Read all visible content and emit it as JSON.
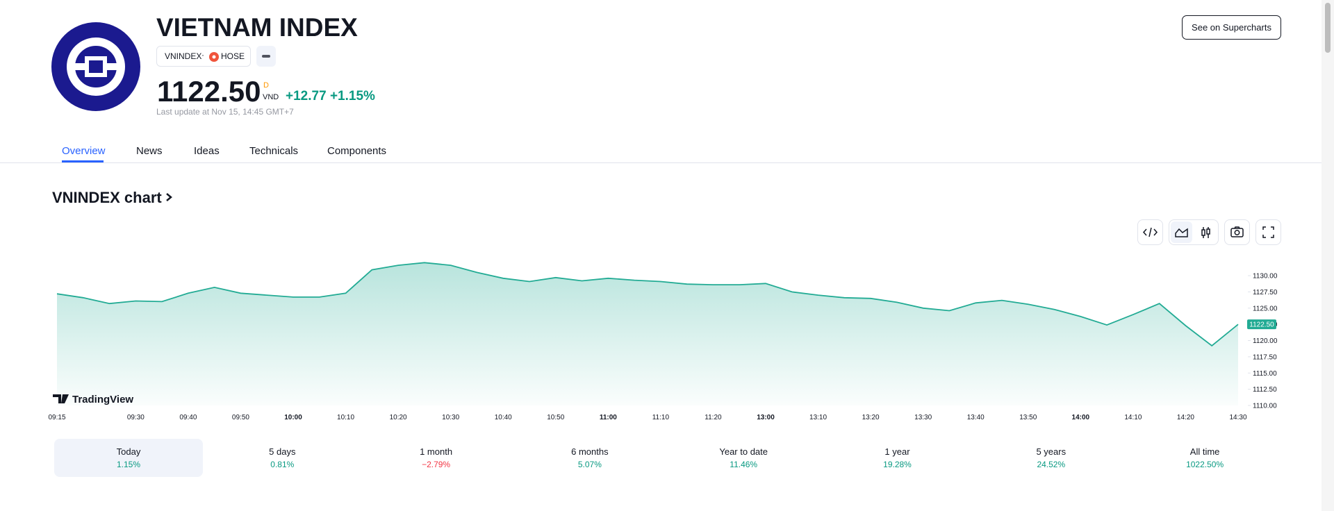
{
  "header": {
    "title": "VIETNAM INDEX",
    "symbol": "VNINDEX",
    "exchange": "HOSE",
    "price": "1122.50",
    "price_flag": "D",
    "currency": "VND",
    "change": "+12.77",
    "change_pct": "+1.15%",
    "last_update": "Last update at Nov 15, 14:45 GMT+7",
    "button": "See on Supercharts"
  },
  "tabs": [
    "Overview",
    "News",
    "Ideas",
    "Technicals",
    "Components"
  ],
  "chart_data": {
    "type": "area",
    "title": "VNINDEX chart",
    "branding": "TradingView",
    "color": "#22ab94",
    "categories": [
      "09:15",
      null,
      null,
      "09:30",
      null,
      "09:40",
      null,
      "09:50",
      null,
      "10:00",
      null,
      "10:10",
      null,
      "10:20",
      null,
      "10:30",
      null,
      "10:40",
      null,
      "10:50",
      null,
      "11:00",
      null,
      "11:10",
      null,
      "11:20",
      null,
      "13:00",
      null,
      "13:10",
      null,
      "13:20",
      null,
      "13:30",
      null,
      "13:40",
      null,
      "13:50",
      null,
      "14:00",
      null,
      "14:10",
      null,
      "14:20",
      null,
      "14:30"
    ],
    "values": [
      1127.2,
      1126.6,
      1125.7,
      1126.1,
      1126.0,
      1127.3,
      1128.2,
      1127.3,
      1127.0,
      1126.7,
      1126.7,
      1127.3,
      1130.9,
      1131.6,
      1132.0,
      1131.6,
      1130.5,
      1129.6,
      1129.1,
      1129.7,
      1129.2,
      1129.6,
      1129.3,
      1129.1,
      1128.7,
      1128.6,
      1128.6,
      1128.8,
      1127.5,
      1127.0,
      1126.6,
      1126.5,
      1125.9,
      1125.0,
      1124.6,
      1125.8,
      1126.2,
      1125.6,
      1124.8,
      1123.7,
      1122.4,
      1124.0,
      1125.7,
      1122.3,
      1119.2,
      1122.5
    ],
    "ylim": [
      1110,
      1133
    ],
    "yticks": [
      {
        "value": 1110,
        "label": "1110.00"
      },
      {
        "value": 1112.5,
        "label": "1112.50"
      },
      {
        "value": 1115,
        "label": "1115.00"
      },
      {
        "value": 1117.5,
        "label": "1117.50"
      },
      {
        "value": 1120,
        "label": "1120.00"
      },
      {
        "value": 1122.5,
        "label": "1122.50"
      },
      {
        "value": 1125,
        "label": "1125.00"
      },
      {
        "value": 1127.5,
        "label": "1127.50"
      },
      {
        "value": 1130,
        "label": "1130.00"
      }
    ],
    "grid": false
  },
  "periods": [
    {
      "label": "Today",
      "change": "1.15%"
    },
    {
      "label": "5 days",
      "change": "0.81%"
    },
    {
      "label": "1 month",
      "change": "−2.79%"
    },
    {
      "label": "6 months",
      "change": "5.07%"
    },
    {
      "label": "Year to date",
      "change": "11.46%"
    },
    {
      "label": "1 year",
      "change": "19.28%"
    },
    {
      "label": "5 years",
      "change": "24.52%"
    },
    {
      "label": "All time",
      "change": "1022.50%"
    }
  ]
}
